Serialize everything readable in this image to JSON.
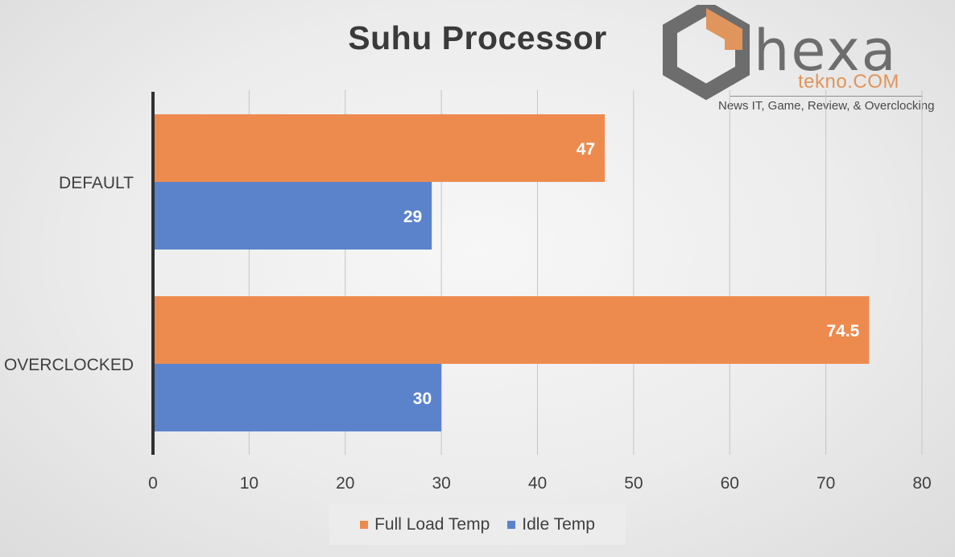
{
  "chart_data": {
    "type": "bar",
    "orientation": "horizontal",
    "title": "Suhu Processor",
    "categories": [
      "DEFAULT",
      "OVERCLOCKED"
    ],
    "series": [
      {
        "name": "Full Load Temp",
        "values": [
          47,
          74.5
        ],
        "color": "#ed8b4f"
      },
      {
        "name": "Idle Temp",
        "values": [
          29,
          30
        ],
        "color": "#5b83cb"
      }
    ],
    "data_labels": [
      [
        "47",
        "74.5"
      ],
      [
        "29",
        "30"
      ]
    ],
    "xlim": [
      0,
      80
    ],
    "xticks": [
      0,
      10,
      20,
      30,
      40,
      50,
      60,
      70,
      80
    ],
    "xtick_labels": [
      "0",
      "10",
      "20",
      "30",
      "40",
      "50",
      "60",
      "70",
      "80"
    ],
    "grid": "vertical",
    "legend_position": "bottom"
  },
  "logo": {
    "word": "hexa",
    "sub": "tekno.COM",
    "tagline": "News IT, Game, Review, & Overclocking"
  },
  "legend_items": [
    "Full Load Temp",
    "Idle Temp"
  ],
  "colors": {
    "full_load": "#ed8b4f",
    "idle": "#5b83cb",
    "axis": "#303030",
    "grid": "#c4c4c4",
    "text": "#404040",
    "logo_gray": "#6d6d6d",
    "logo_orange": "#e0955c"
  }
}
